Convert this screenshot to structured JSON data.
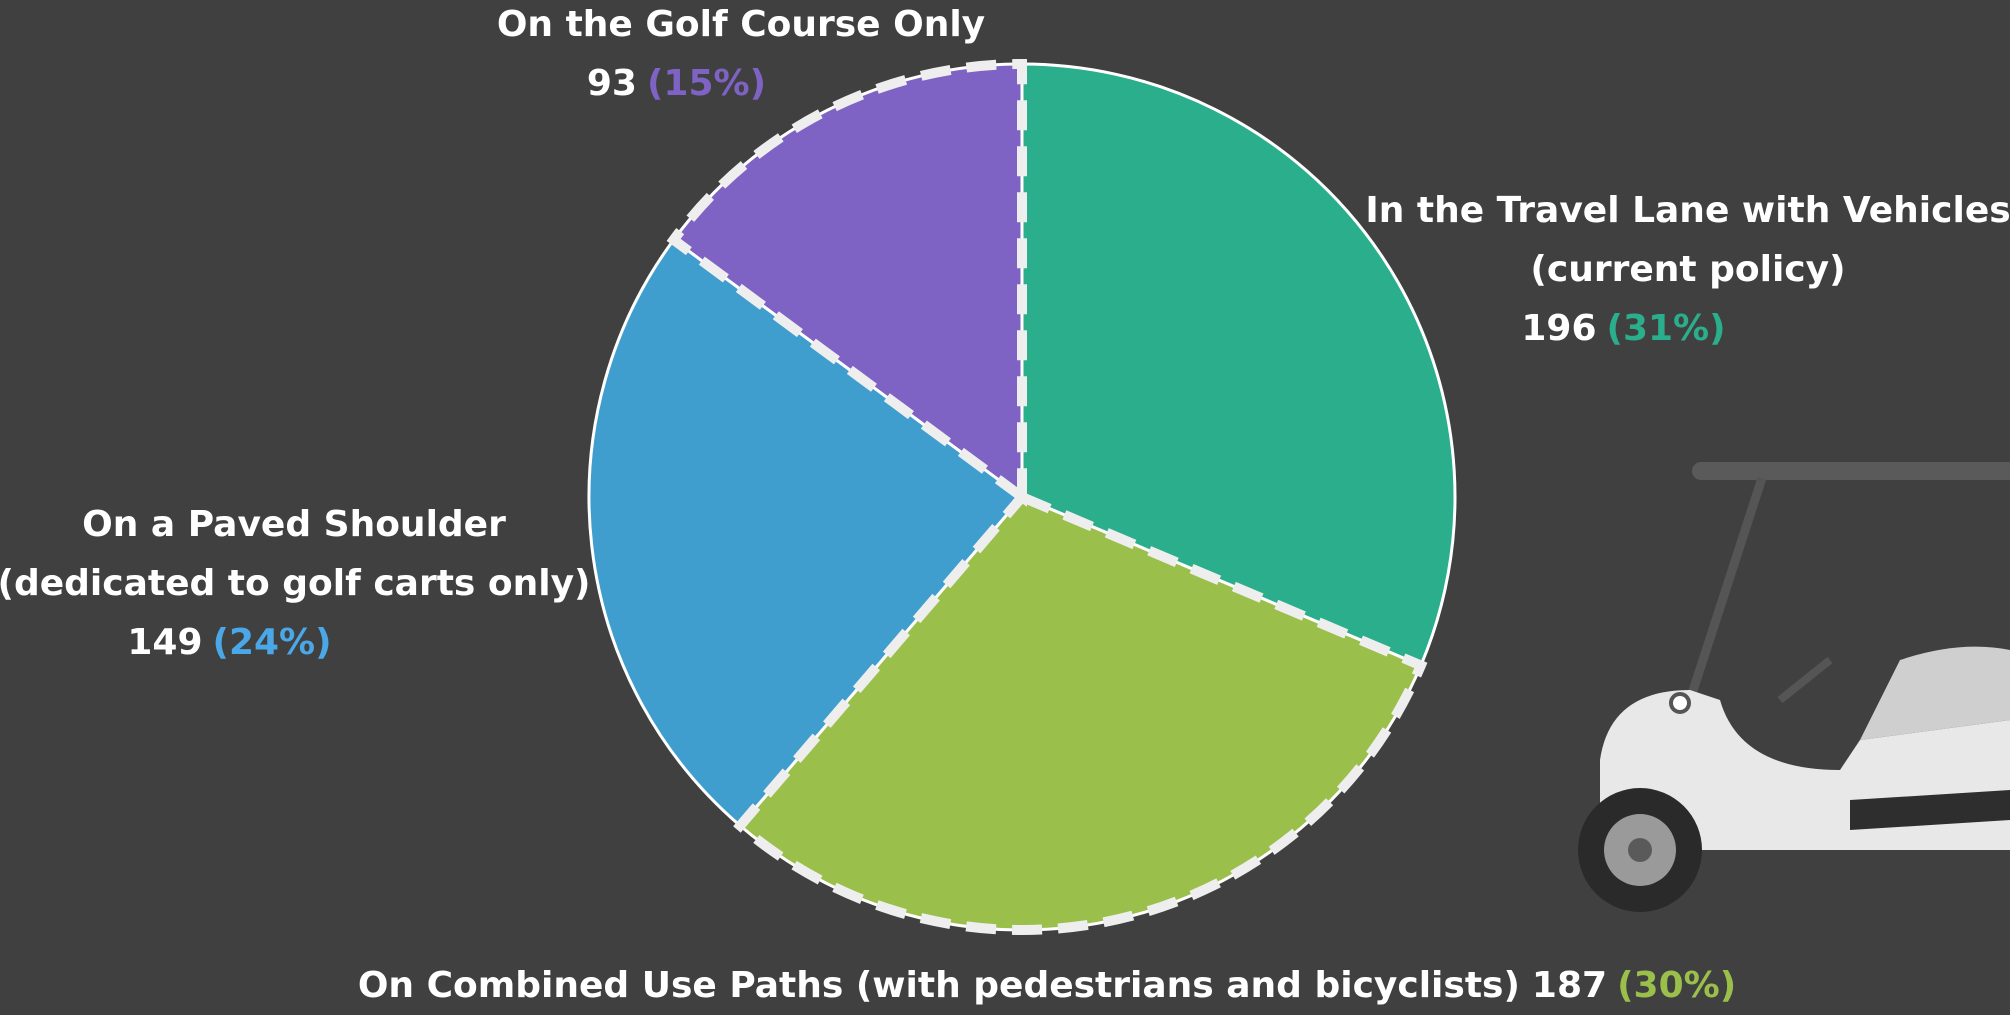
{
  "chart_data": {
    "type": "pie",
    "slices": [
      {
        "name_lines": [
          "In the Travel Lane with Vehicles",
          "(current policy)"
        ],
        "value": 196,
        "percent": 31,
        "percent_label": "(31%)",
        "color": "#2bae8b",
        "label_color": "#2bae8b",
        "outline": "solid"
      },
      {
        "name_lines": [
          "On Combined Use Paths (with pedestrians and bicyclists)"
        ],
        "value": 187,
        "percent": 30,
        "percent_label": "(30%)",
        "color": "#9bbf4b",
        "label_color": "#9bbf4b",
        "outline": "dashed"
      },
      {
        "name_lines": [
          "On a Paved Shoulder",
          "(dedicated to golf carts only)"
        ],
        "value": 149,
        "percent": 24,
        "percent_label": "(24%)",
        "color": "#3f9ecd",
        "label_color": "#4aa8e8",
        "outline": "solid"
      },
      {
        "name_lines": [
          "On the Golf Course Only"
        ],
        "value": 93,
        "percent": 15,
        "percent_label": "(15%)",
        "color": "#7e63c4",
        "label_color": "#7e63c4",
        "outline": "dashed"
      }
    ]
  }
}
